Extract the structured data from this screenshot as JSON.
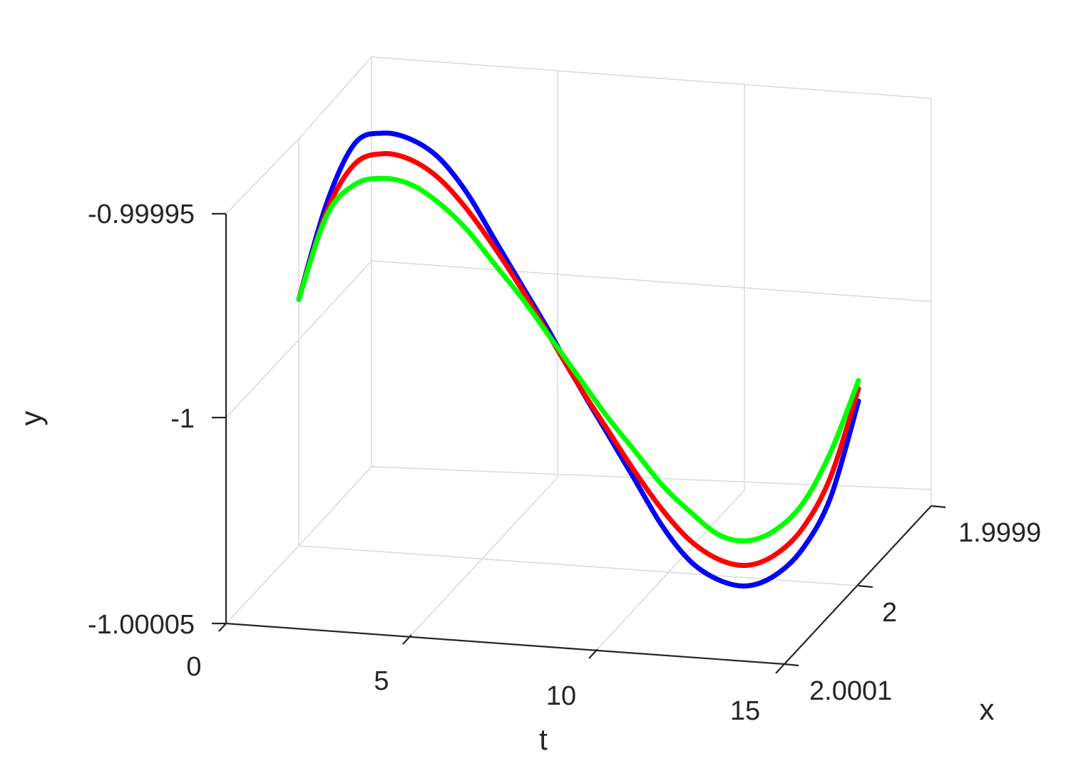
{
  "chart_data": {
    "type": "line",
    "projection": "3d",
    "title": "",
    "xlabel": "t",
    "ylabel": "x",
    "zlabel": "y",
    "t_lim": [
      0,
      15
    ],
    "x_lim": [
      1.9999,
      2.0001
    ],
    "y_lim": [
      -1.00005,
      -0.99995
    ],
    "t_ticks": [
      "0",
      "5",
      "10",
      "15"
    ],
    "x_ticks": [
      "1.9999",
      "2",
      "2.0001"
    ],
    "y_ticks": [
      "-0.99995",
      "-1",
      "-1.00005"
    ],
    "grid": true,
    "x": [
      0,
      0.75,
      1.5,
      2.25,
      3,
      3.75,
      4.5,
      5.25,
      6,
      6.75,
      7.5,
      8.25,
      9,
      9.75,
      10.5,
      11.25,
      12,
      12.75,
      13.5,
      14.25,
      15
    ],
    "series": [
      {
        "color": "#0000ff",
        "x_offset": [
          0,
          0,
          0,
          0,
          0,
          0,
          0,
          0,
          0,
          0,
          0,
          0,
          0,
          0,
          0,
          0,
          0,
          0,
          0,
          0,
          0
        ],
        "y": [
          -0.99999,
          -0.999966,
          -0.999951,
          -0.999948,
          -0.999949,
          -0.999953,
          -0.999961,
          -0.999972,
          -0.999983,
          -0.999994,
          -1.000006,
          -1.000017,
          -1.000028,
          -1.000039,
          -1.000047,
          -1.000051,
          -1.000052,
          -1.000049,
          -1.000042,
          -1.000029,
          -1.000005
        ]
      },
      {
        "color": "#ff0000",
        "x_offset": [
          0,
          0,
          0,
          0,
          0,
          0,
          0,
          0,
          0,
          0,
          0,
          0,
          0,
          0,
          0,
          0,
          0,
          0,
          0,
          0,
          0
        ],
        "y": [
          -0.99999,
          -0.999968,
          -0.999956,
          -0.999953,
          -0.999954,
          -0.999958,
          -0.999965,
          -0.999974,
          -0.999984,
          -0.999995,
          -1.000006,
          -1.000016,
          -1.000026,
          -1.000035,
          -1.000042,
          -1.000046,
          -1.000047,
          -1.000044,
          -1.000037,
          -1.000024,
          -1.000002
        ]
      },
      {
        "color": "#00ff00",
        "x_offset": [
          0,
          0,
          0,
          0,
          0,
          0,
          0,
          0,
          0,
          0,
          0,
          0,
          0,
          0,
          0,
          0,
          0,
          0,
          0,
          0,
          0
        ],
        "y": [
          -0.99999,
          -0.999969,
          -0.999961,
          -0.999959,
          -0.99996,
          -0.999964,
          -0.99997,
          -0.999978,
          -0.999986,
          -0.999995,
          -1.000004,
          -1.000013,
          -1.000021,
          -1.000029,
          -1.000035,
          -1.00004,
          -1.000041,
          -1.000038,
          -1.000031,
          -1.000018,
          -1
        ]
      }
    ]
  }
}
